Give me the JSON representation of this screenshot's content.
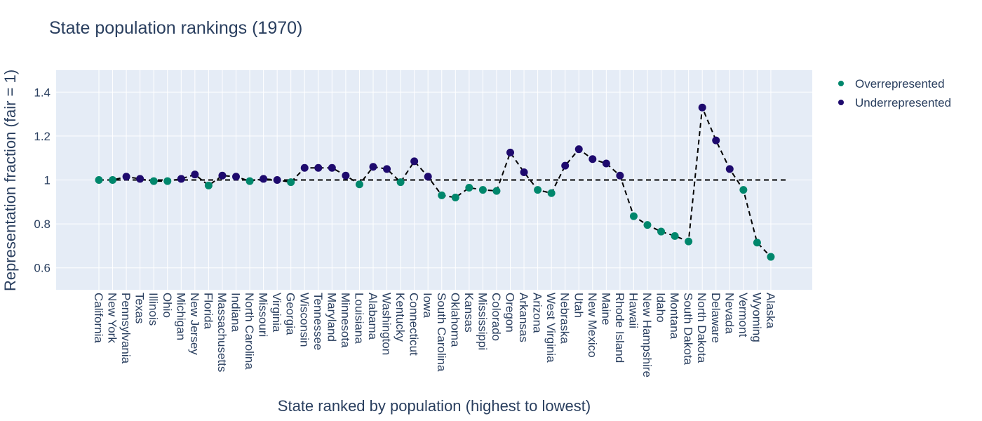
{
  "chart_data": {
    "type": "scatter",
    "title": "State population rankings (1970)",
    "xlabel": "State ranked by population (highest to lowest)",
    "ylabel": "Representation fraction (fair = 1)",
    "ylim": [
      0.5,
      1.5
    ],
    "yticks": [
      0.6,
      0.8,
      1,
      1.2,
      1.4
    ],
    "ytick_labels": [
      "0.6",
      "0.8",
      "1",
      "1.2",
      "1.4"
    ],
    "reference_line": {
      "y": 1,
      "style": "dashed",
      "color": "#000000"
    },
    "connecting_line": {
      "style": "dashed",
      "color": "#000000"
    },
    "grid": true,
    "legend_position": "top-right",
    "series": [
      {
        "name": "Overrepresented",
        "color": "#00876c"
      },
      {
        "name": "Underrepresented",
        "color": "#1e0a6e"
      }
    ],
    "points": [
      {
        "state": "California",
        "y": 1.0,
        "group": 0
      },
      {
        "state": "New York",
        "y": 1.0,
        "group": 0
      },
      {
        "state": "Pennsylvania",
        "y": 1.015,
        "group": 1
      },
      {
        "state": "Texas",
        "y": 1.005,
        "group": 1
      },
      {
        "state": "Illinois",
        "y": 0.995,
        "group": 0
      },
      {
        "state": "Ohio",
        "y": 0.995,
        "group": 0
      },
      {
        "state": "Michigan",
        "y": 1.005,
        "group": 1
      },
      {
        "state": "New Jersey",
        "y": 1.025,
        "group": 1
      },
      {
        "state": "Florida",
        "y": 0.975,
        "group": 0
      },
      {
        "state": "Massachusetts",
        "y": 1.02,
        "group": 1
      },
      {
        "state": "Indiana",
        "y": 1.015,
        "group": 1
      },
      {
        "state": "North Carolina",
        "y": 0.995,
        "group": 0
      },
      {
        "state": "Missouri",
        "y": 1.005,
        "group": 1
      },
      {
        "state": "Virginia",
        "y": 1.0,
        "group": 1
      },
      {
        "state": "Georgia",
        "y": 0.99,
        "group": 0
      },
      {
        "state": "Wisconsin",
        "y": 1.055,
        "group": 1
      },
      {
        "state": "Tennessee",
        "y": 1.055,
        "group": 1
      },
      {
        "state": "Maryland",
        "y": 1.055,
        "group": 1
      },
      {
        "state": "Minnesota",
        "y": 1.02,
        "group": 1
      },
      {
        "state": "Louisiana",
        "y": 0.98,
        "group": 0
      },
      {
        "state": "Alabama",
        "y": 1.06,
        "group": 1
      },
      {
        "state": "Washington",
        "y": 1.05,
        "group": 1
      },
      {
        "state": "Kentucky",
        "y": 0.99,
        "group": 0
      },
      {
        "state": "Connecticut",
        "y": 1.085,
        "group": 1
      },
      {
        "state": "Iowa",
        "y": 1.015,
        "group": 1
      },
      {
        "state": "South Carolina",
        "y": 0.93,
        "group": 0
      },
      {
        "state": "Oklahoma",
        "y": 0.92,
        "group": 0
      },
      {
        "state": "Kansas",
        "y": 0.965,
        "group": 0
      },
      {
        "state": "Mississippi",
        "y": 0.955,
        "group": 0
      },
      {
        "state": "Colorado",
        "y": 0.95,
        "group": 0
      },
      {
        "state": "Oregon",
        "y": 1.125,
        "group": 1
      },
      {
        "state": "Arkansas",
        "y": 1.035,
        "group": 1
      },
      {
        "state": "Arizona",
        "y": 0.955,
        "group": 0
      },
      {
        "state": "West Virginia",
        "y": 0.94,
        "group": 0
      },
      {
        "state": "Nebraska",
        "y": 1.065,
        "group": 1
      },
      {
        "state": "Utah",
        "y": 1.14,
        "group": 1
      },
      {
        "state": "New Mexico",
        "y": 1.095,
        "group": 1
      },
      {
        "state": "Maine",
        "y": 1.075,
        "group": 1
      },
      {
        "state": "Rhode Island",
        "y": 1.02,
        "group": 1
      },
      {
        "state": "Hawaii",
        "y": 0.835,
        "group": 0
      },
      {
        "state": "New Hampshire",
        "y": 0.795,
        "group": 0
      },
      {
        "state": "Idaho",
        "y": 0.765,
        "group": 0
      },
      {
        "state": "Montana",
        "y": 0.745,
        "group": 0
      },
      {
        "state": "South Dakota",
        "y": 0.72,
        "group": 0
      },
      {
        "state": "North Dakota",
        "y": 1.33,
        "group": 1
      },
      {
        "state": "Delaware",
        "y": 1.18,
        "group": 1
      },
      {
        "state": "Nevada",
        "y": 1.05,
        "group": 1
      },
      {
        "state": "Vermont",
        "y": 0.955,
        "group": 0
      },
      {
        "state": "Wyoming",
        "y": 0.715,
        "group": 0
      },
      {
        "state": "Alaska",
        "y": 0.65,
        "group": 0
      }
    ]
  }
}
